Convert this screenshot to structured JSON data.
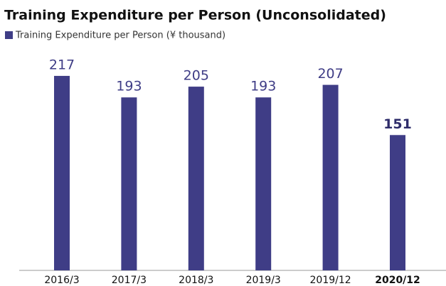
{
  "chart_data": {
    "type": "bar",
    "title": "Training Expenditure per Person (Unconsolidated)",
    "categories": [
      "2016/3",
      "2017/3",
      "2018/3",
      "2019/3",
      "2019/12",
      "2020/12"
    ],
    "series": [
      {
        "name": "Training Expenditure per Person  (¥ thousand)",
        "color": "#3f3d86",
        "values": [
          217,
          193,
          205,
          193,
          207,
          151
        ]
      }
    ]
  }
}
